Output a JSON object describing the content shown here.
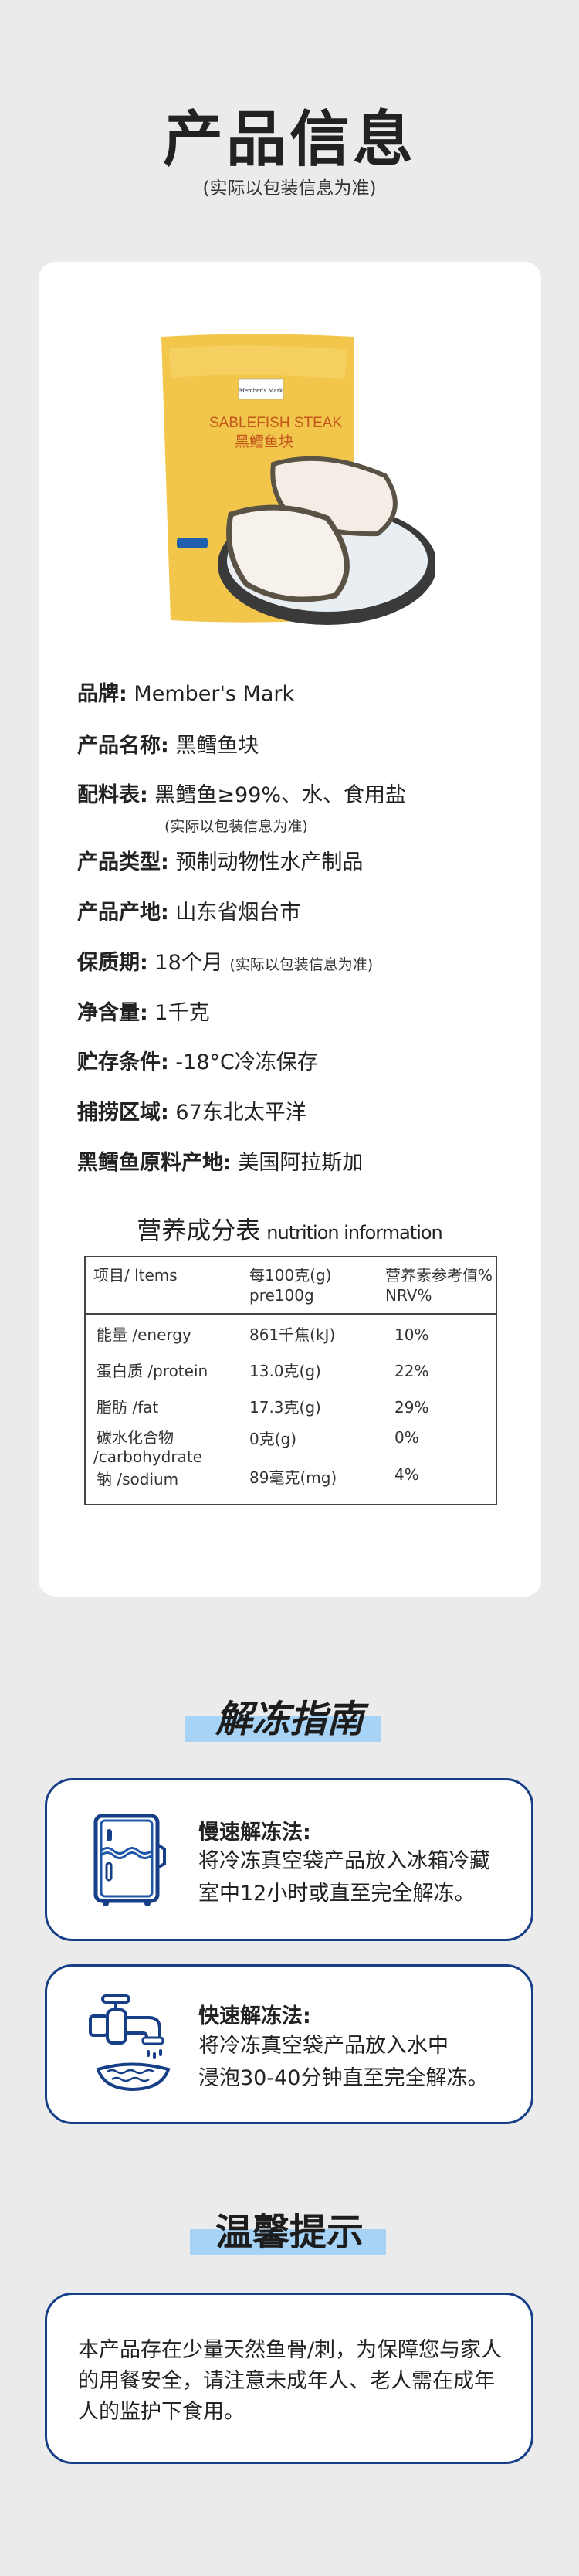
{
  "header": {
    "title": "产品信息",
    "subtitle": "(实际以包装信息为准)"
  },
  "product_image": {
    "brand_logo": "Member's Mark",
    "bag_title_en": "SABLEFISH STEAK",
    "bag_title_cn": "黑鳕鱼块",
    "bag_color": "#f2c64b"
  },
  "info": [
    {
      "label": "品牌:",
      "value": "Member's Mark"
    },
    {
      "label": "产品名称:",
      "value": "黑鳕鱼块"
    },
    {
      "label": "配料表:",
      "value": "黑鳕鱼≥99%、水、食用盐",
      "note": "(实际以包装信息为准)"
    },
    {
      "label": "产品类型:",
      "value": "预制动物性水产制品"
    },
    {
      "label": "产品产地:",
      "value": "山东省烟台市"
    },
    {
      "label": "保质期:",
      "value": "18个月",
      "note": "(实际以包装信息为准)"
    },
    {
      "label": "净含量:",
      "value": "1千克"
    },
    {
      "label": "贮存条件:",
      "value": "-18°C冷冻保存"
    },
    {
      "label": "捕捞区域:",
      "value": "67东北太平洋"
    },
    {
      "label": "黑鳕鱼原料产地:",
      "value": "美国阿拉斯加"
    }
  ],
  "nutrition": {
    "title_cn": "营养成分表",
    "title_en": "nutrition information",
    "headers": [
      {
        "line1": "项目/ ltems",
        "line2": ""
      },
      {
        "line1": "每100克(g)",
        "line2": "pre100g"
      },
      {
        "line1": "营养素参考值%",
        "line2": "NRV%"
      }
    ],
    "rows": [
      {
        "item": "能量 /energy",
        "amount": "861千焦(kJ)",
        "nrv": "10%"
      },
      {
        "item": "蛋白质 /protein",
        "amount": "13.0克(g)",
        "nrv": "22%"
      },
      {
        "item": "脂肪 /fat",
        "amount": "17.3克(g)",
        "nrv": "29%"
      },
      {
        "item": "碳水化合物",
        "item2": "/carbohydrate",
        "amount": "0克(g)",
        "nrv": "0%"
      },
      {
        "item": "钠 /sodium",
        "amount": "89毫克(mg)",
        "nrv": "4%"
      }
    ]
  },
  "thaw": {
    "title": "解冻指南",
    "methods": [
      {
        "icon": "fridge-icon",
        "title": "慢速解冻法:",
        "lines": [
          "将冷冻真空袋产品放入冰箱冷藏",
          "室中12小时或直至完全解冻。"
        ]
      },
      {
        "icon": "faucet-bowl-icon",
        "title": "快速解冻法:",
        "lines": [
          "将冷冻真空袋产品放入水中",
          "浸泡30-40分钟直至完全解冻。"
        ]
      }
    ]
  },
  "tips": {
    "title": "温馨提示",
    "text": "本产品存在少量天然鱼骨/刺，为保障您与家人的用餐安全，请注意未成年人、老人需在成年人的监护下食用。"
  },
  "colors": {
    "background": "#ebebeb",
    "accent_navy": "#173f87",
    "highlight": "#a7d3f6"
  }
}
